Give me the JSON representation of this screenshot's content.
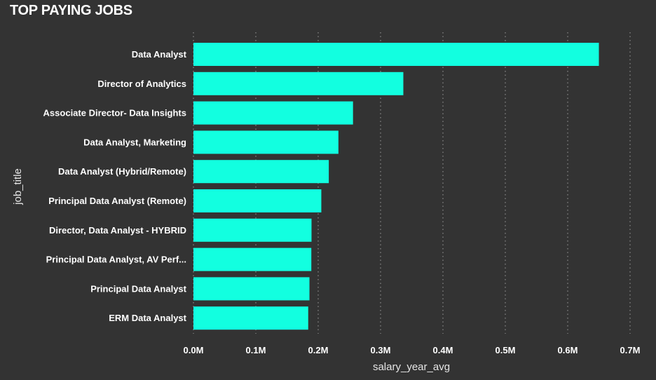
{
  "colors": {
    "background": "#333333",
    "bar": "#12FFE0",
    "gridline": "#8c8c8c",
    "text": "#ffffff"
  },
  "chart_data": {
    "type": "bar",
    "orientation": "horizontal",
    "title": "TOP PAYING JOBS",
    "xlabel": "salary_year_avg",
    "ylabel": "job_title",
    "xlim": [
      0,
      700000
    ],
    "xticks": [
      0,
      100000,
      200000,
      300000,
      400000,
      500000,
      600000,
      700000
    ],
    "xtick_labels": [
      "0.0M",
      "0.1M",
      "0.2M",
      "0.3M",
      "0.4M",
      "0.5M",
      "0.6M",
      "0.7M"
    ],
    "grid": "vertical dotted",
    "categories": [
      "Data Analyst",
      "Director of Analytics",
      "Associate Director- Data Insights",
      "Data Analyst, Marketing",
      "Data Analyst (Hybrid/Remote)",
      "Principal Data Analyst (Remote)",
      "Director, Data Analyst - HYBRID",
      "Principal Data Analyst, AV Perf...",
      "Principal Data Analyst",
      "ERM Data Analyst"
    ],
    "values": [
      650000,
      336500,
      255830,
      232423,
      217000,
      205000,
      189309,
      189000,
      186000,
      184000
    ]
  }
}
